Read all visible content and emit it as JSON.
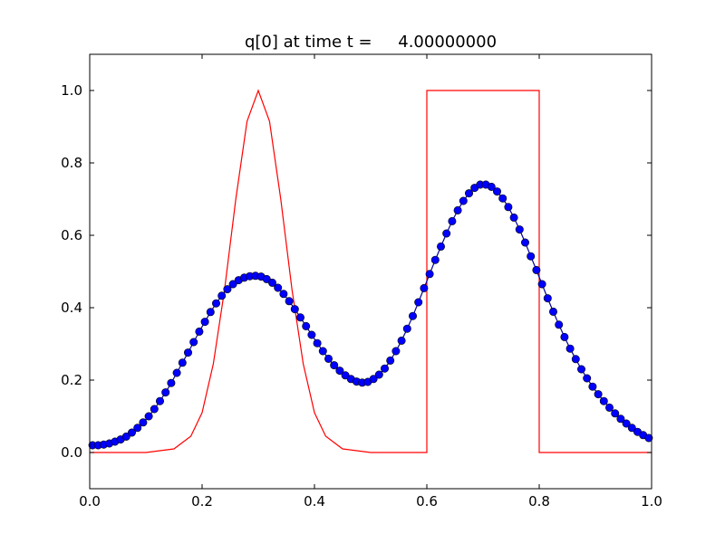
{
  "chart_data": {
    "type": "line",
    "title": "q[0] at time t =     4.00000000",
    "xlabel": "",
    "ylabel": "",
    "xlim": [
      0.0,
      1.0
    ],
    "ylim": [
      -0.1,
      1.1
    ],
    "xticks": [
      "0.0",
      "0.2",
      "0.4",
      "0.6",
      "0.8",
      "1.0"
    ],
    "yticks": [
      "0.0",
      "0.2",
      "0.4",
      "0.6",
      "0.8",
      "1.0"
    ],
    "grid": false,
    "legend": "none",
    "series": [
      {
        "style": "line",
        "color": "#ff0000",
        "x": [
          0.0,
          0.05,
          0.1,
          0.15,
          0.18,
          0.2,
          0.22,
          0.24,
          0.26,
          0.28,
          0.3,
          0.32,
          0.34,
          0.36,
          0.38,
          0.4,
          0.42,
          0.45,
          0.5,
          0.55,
          0.6,
          0.6,
          0.7,
          0.8,
          0.8,
          0.9,
          1.0
        ],
        "y": [
          0.0,
          0.0,
          0.0,
          0.01,
          0.045,
          0.11,
          0.245,
          0.45,
          0.7,
          0.915,
          1.0,
          0.915,
          0.7,
          0.45,
          0.245,
          0.11,
          0.045,
          0.01,
          0.0,
          0.0,
          0.0,
          1.0,
          1.0,
          1.0,
          0.0,
          0.0,
          0.0
        ]
      },
      {
        "style": "line+markers",
        "color": "#000099",
        "marker_color": "#0000ff",
        "x": [
          0.005,
          0.015,
          0.025,
          0.035,
          0.045,
          0.055,
          0.065,
          0.075,
          0.085,
          0.095,
          0.105,
          0.115,
          0.125,
          0.135,
          0.145,
          0.155,
          0.165,
          0.175,
          0.185,
          0.195,
          0.205,
          0.215,
          0.225,
          0.235,
          0.245,
          0.255,
          0.265,
          0.275,
          0.285,
          0.295,
          0.305,
          0.315,
          0.325,
          0.335,
          0.345,
          0.355,
          0.365,
          0.375,
          0.385,
          0.395,
          0.405,
          0.415,
          0.425,
          0.435,
          0.445,
          0.455,
          0.465,
          0.475,
          0.485,
          0.495,
          0.505,
          0.515,
          0.525,
          0.535,
          0.545,
          0.555,
          0.565,
          0.575,
          0.585,
          0.595,
          0.605,
          0.615,
          0.625,
          0.635,
          0.645,
          0.655,
          0.665,
          0.675,
          0.685,
          0.695,
          0.705,
          0.715,
          0.725,
          0.735,
          0.745,
          0.755,
          0.765,
          0.775,
          0.785,
          0.795,
          0.805,
          0.815,
          0.825,
          0.835,
          0.845,
          0.855,
          0.865,
          0.875,
          0.885,
          0.895,
          0.905,
          0.915,
          0.925,
          0.935,
          0.945,
          0.955,
          0.965,
          0.975,
          0.985,
          0.995
        ],
        "y": [
          0.02,
          0.02,
          0.022,
          0.025,
          0.03,
          0.036,
          0.044,
          0.055,
          0.068,
          0.083,
          0.1,
          0.12,
          0.142,
          0.166,
          0.192,
          0.22,
          0.248,
          0.276,
          0.305,
          0.334,
          0.361,
          0.388,
          0.412,
          0.433,
          0.451,
          0.465,
          0.476,
          0.483,
          0.487,
          0.488,
          0.486,
          0.479,
          0.469,
          0.455,
          0.438,
          0.418,
          0.396,
          0.373,
          0.349,
          0.325,
          0.302,
          0.28,
          0.259,
          0.241,
          0.226,
          0.213,
          0.203,
          0.196,
          0.193,
          0.195,
          0.203,
          0.215,
          0.232,
          0.254,
          0.28,
          0.309,
          0.342,
          0.377,
          0.415,
          0.454,
          0.493,
          0.532,
          0.569,
          0.605,
          0.639,
          0.669,
          0.695,
          0.716,
          0.731,
          0.74,
          0.74,
          0.734,
          0.721,
          0.702,
          0.678,
          0.649,
          0.616,
          0.58,
          0.542,
          0.504,
          0.465,
          0.426,
          0.389,
          0.353,
          0.319,
          0.287,
          0.258,
          0.23,
          0.205,
          0.182,
          0.161,
          0.142,
          0.124,
          0.108,
          0.093,
          0.08,
          0.068,
          0.057,
          0.048,
          0.04
        ]
      }
    ]
  }
}
